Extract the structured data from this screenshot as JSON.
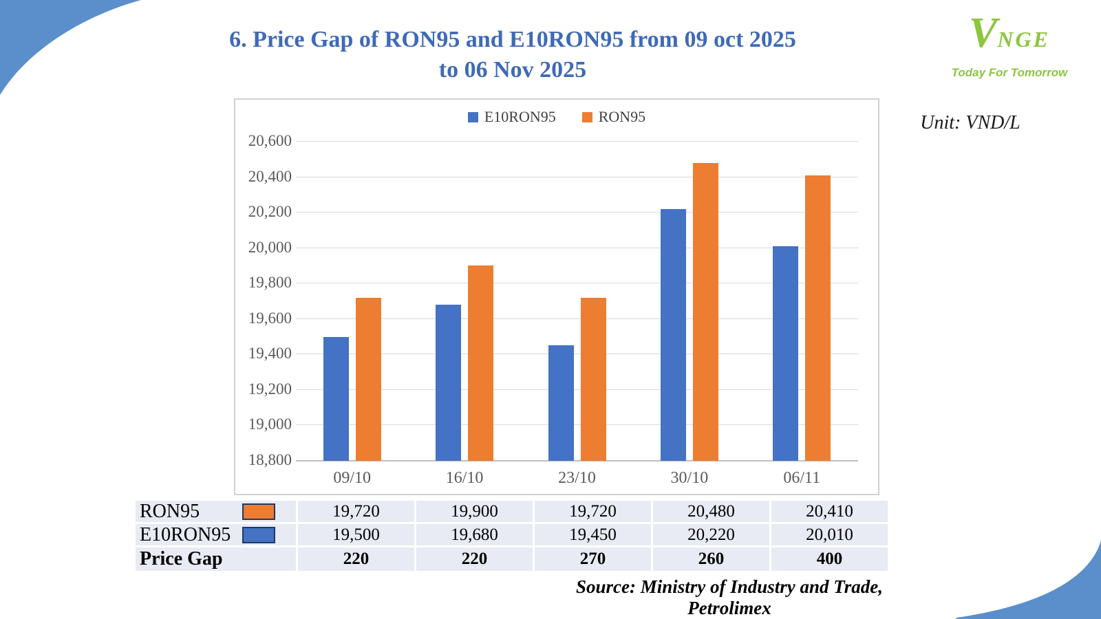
{
  "title": {
    "line1": "6. Price Gap of RON95 and E10RON95 from 09 oct 2025",
    "line2": "to 06 Nov 2025"
  },
  "logo": {
    "v": "V",
    "rest": "NGE",
    "tagline": "Today For Tomorrow"
  },
  "unit_label": "Unit: VND/L",
  "source": "Source: Ministry of Industry and Trade, Petrolimex",
  "chart_data": {
    "type": "bar",
    "categories": [
      "09/10",
      "16/10",
      "23/10",
      "30/10",
      "06/11"
    ],
    "series": [
      {
        "name": "E10RON95",
        "color": "#4472C4",
        "values": [
          19500,
          19680,
          19450,
          20220,
          20010
        ]
      },
      {
        "name": "RON95",
        "color": "#ED7D31",
        "values": [
          19720,
          19900,
          19720,
          20480,
          20410
        ]
      }
    ],
    "title": "",
    "xlabel": "",
    "ylabel": "",
    "unit": "VND/L",
    "ylim": [
      18800,
      20600
    ],
    "ytick_step": 200,
    "yticks": [
      "18,800",
      "19,000",
      "19,200",
      "19,400",
      "19,600",
      "19,800",
      "20,000",
      "20,200",
      "20,400",
      "20,600"
    ],
    "grid": true,
    "legend_position": "top"
  },
  "table": {
    "rows": [
      {
        "label": "RON95",
        "swatch": "#ED7D31",
        "bold": false,
        "values": [
          "19,720",
          "19,900",
          "19,720",
          "20,480",
          "20,410"
        ]
      },
      {
        "label": "E10RON95",
        "swatch": "#4472C4",
        "bold": false,
        "values": [
          "19,500",
          "19,680",
          "19,450",
          "20,220",
          "20,010"
        ]
      },
      {
        "label": "Price Gap",
        "swatch": null,
        "bold": true,
        "values": [
          "220",
          "220",
          "270",
          "260",
          "400"
        ]
      }
    ]
  },
  "colors": {
    "wave_blue": "#5B8FCB",
    "title_blue": "#3F6AB5",
    "logo_green": "#8CC63F",
    "bar_blue": "#4472C4",
    "bar_orange": "#ED7D31",
    "table_bg": "#E8EAF4",
    "swatch_border": "#203864"
  }
}
